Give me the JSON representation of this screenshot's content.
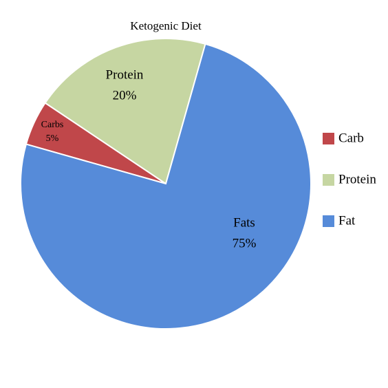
{
  "chart_data": {
    "type": "pie",
    "title": "Ketogenic Diet",
    "categories": [
      "Carb",
      "Protein",
      "Fat"
    ],
    "slice_labels": [
      "Carbs",
      "Protein",
      "Fats"
    ],
    "values": [
      5,
      20,
      75
    ],
    "value_labels": [
      "5%",
      "20%",
      "75%"
    ],
    "colors": [
      "#c0474a",
      "#c6d6a2",
      "#568bd9"
    ],
    "legend": "right"
  }
}
